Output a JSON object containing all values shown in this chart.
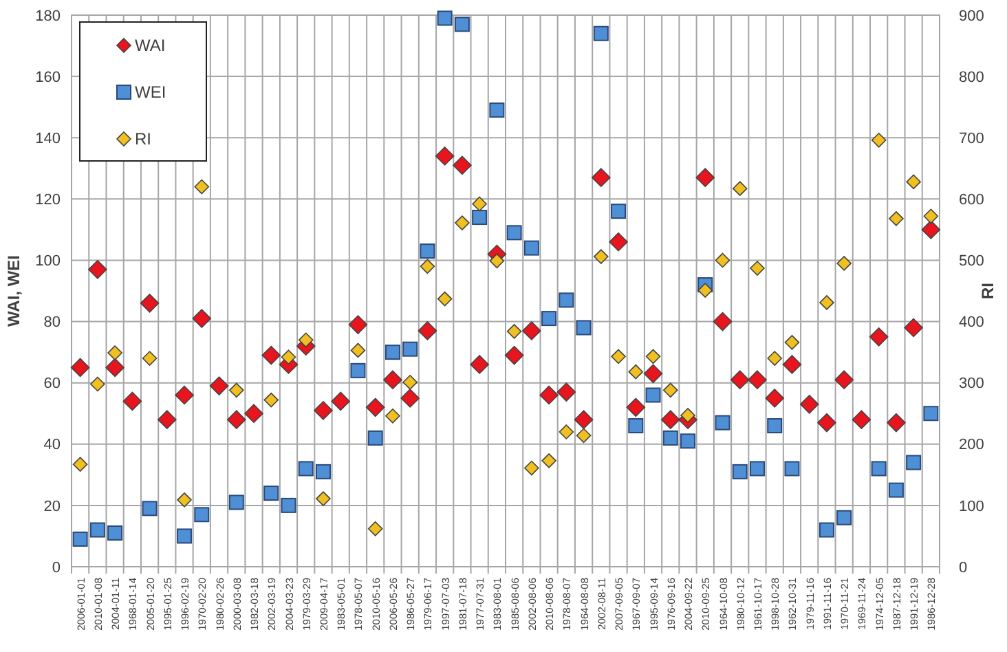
{
  "chart_data": {
    "type": "scatter",
    "ylabel": "WAI, WEI",
    "y2label": "RI",
    "categories": [
      "2006-01-01",
      "2010-01-08",
      "2004-01-11",
      "1968-01-14",
      "2005-01-20",
      "1995-01-25",
      "1996-02-19",
      "1970-02-20",
      "1980-02-26",
      "2000-03-08",
      "1982-03-18",
      "2002-03-19",
      "2004-03-23",
      "1979-03-29",
      "2009-04-17",
      "1983-05-01",
      "1978-05-07",
      "2010-05-16",
      "2006-05-26",
      "1986-05-27",
      "1979-06-17",
      "1997-07-03",
      "1981-07-18",
      "1977-07-31",
      "1983-08-01",
      "1985-08-06",
      "2002-08-06",
      "2010-08-06",
      "1978-08-07",
      "1964-08-08",
      "2002-08-11",
      "2007-09-05",
      "1967-09-07",
      "1995-09-14",
      "1976-09-16",
      "2004-09-22",
      "2010-09-25",
      "1964-10-08",
      "1980-10-12",
      "1961-10-17",
      "1998-10-28",
      "1962-10-31",
      "1979-11-16",
      "1991-11-16",
      "1970-11-21",
      "1969-11-24",
      "1974-12-05",
      "1987-12-18",
      "1991-12-19",
      "1986-12-28"
    ],
    "series": [
      {
        "name": "WAI",
        "color": "#e8141e",
        "marker": "diamond",
        "values": [
          65,
          97,
          65,
          54,
          86,
          48,
          56,
          81,
          59,
          48,
          50,
          69,
          66,
          72,
          51,
          54,
          79,
          52,
          61,
          55,
          77,
          134,
          131,
          66,
          102,
          69,
          77,
          56,
          57,
          48,
          127,
          106,
          52,
          63,
          48,
          48,
          127,
          80,
          61,
          61,
          55,
          66,
          53,
          47,
          61,
          48,
          75,
          47,
          78,
          110
        ]
      },
      {
        "name": "WEI",
        "color": "#4f8fd6",
        "marker": "square",
        "values": [
          9,
          12,
          11,
          null,
          19,
          null,
          10,
          17,
          null,
          21,
          null,
          24,
          20,
          32,
          31,
          null,
          64,
          42,
          70,
          71,
          103,
          179,
          177,
          114,
          149,
          109,
          104,
          81,
          87,
          78,
          174,
          116,
          46,
          56,
          42,
          41,
          92,
          47,
          31,
          32,
          46,
          32,
          null,
          12,
          16,
          null,
          32,
          25,
          34,
          50
        ]
      },
      {
        "name": "RI",
        "color": "#f0c020",
        "marker": "diamond",
        "axis": "y2",
        "values": [
          167,
          298,
          349,
          null,
          340,
          null,
          109,
          620,
          null,
          288,
          null,
          272,
          342,
          370,
          111,
          null,
          353,
          62,
          246,
          301,
          490,
          437,
          561,
          592,
          499,
          384,
          161,
          173,
          220,
          214,
          506,
          343,
          318,
          343,
          288,
          247,
          451,
          500,
          617,
          487,
          340,
          366,
          null,
          431,
          495,
          null,
          696,
          568,
          628,
          572
        ]
      }
    ],
    "ylim": [
      0,
      180
    ],
    "yticks": [
      0,
      20,
      40,
      60,
      80,
      100,
      120,
      140,
      160,
      180
    ],
    "y2lim": [
      0,
      900
    ],
    "y2ticks": [
      0,
      100,
      200,
      300,
      400,
      500,
      600,
      700,
      800,
      900
    ],
    "grid": true,
    "legend": "top left"
  }
}
